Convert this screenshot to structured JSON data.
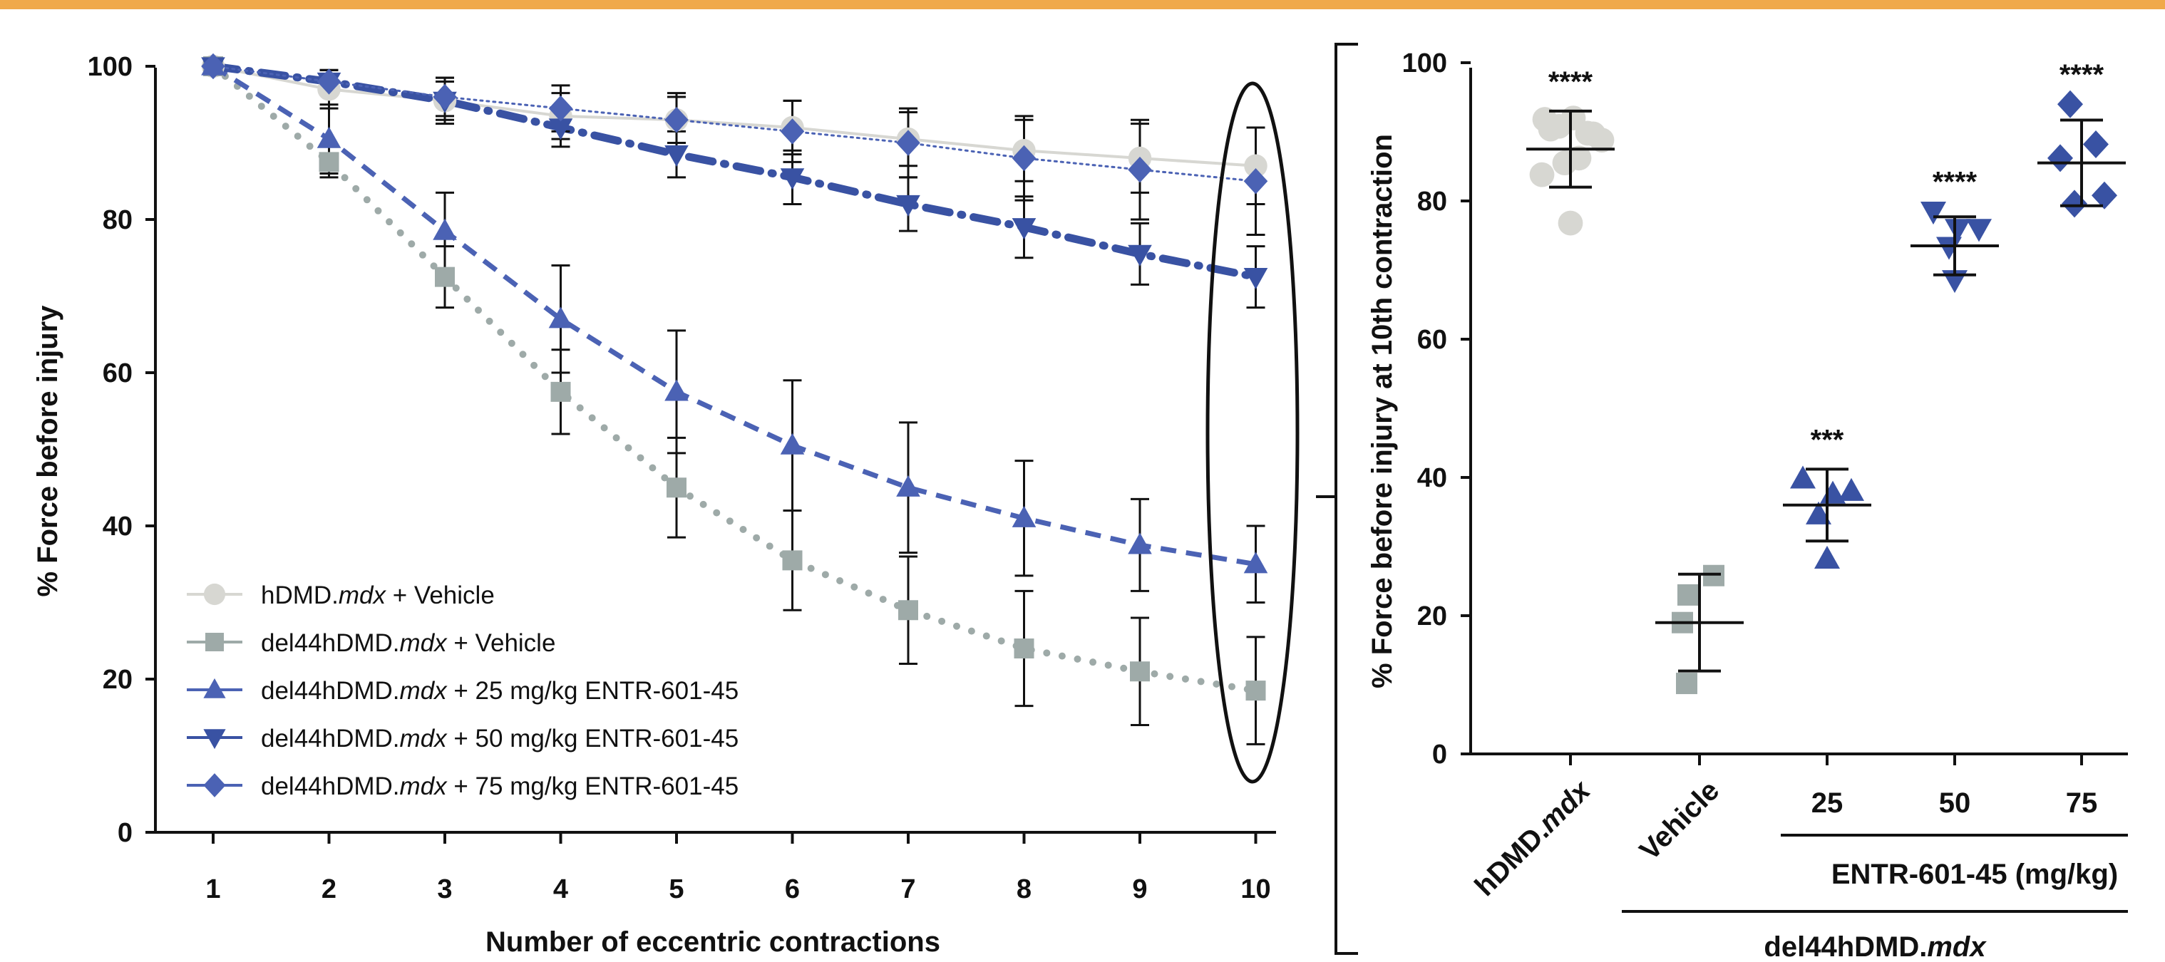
{
  "colors": {
    "top_band": "#F0A94A",
    "axis": "#111111",
    "hdmd_vehicle": "#D7D7D2",
    "del44_vehicle": "#9EAAA8",
    "dose_series": "#3952A3",
    "dose_25_75": "#4B62B4"
  },
  "chart_data": [
    {
      "type": "line",
      "xlabel": "Number of eccentric contractions",
      "ylabel": "% Force before injury",
      "ylim": [
        0,
        100
      ],
      "yticks": [
        "0",
        "20",
        "40",
        "60",
        "80",
        "100"
      ],
      "x": [
        "1",
        "2",
        "3",
        "4",
        "5",
        "6",
        "7",
        "8",
        "9",
        "10"
      ],
      "legend_position": "bottom-left",
      "annotation": "ellipse around contraction 10",
      "series": [
        {
          "key": "hdmd_vehicle",
          "legend": {
            "prefix": "hDMD.",
            "italic": "mdx",
            "suffix": " + Vehicle"
          },
          "marker": "circle",
          "line": "solid",
          "color": "#D7D7D2",
          "values": [
            100,
            97,
            95.5,
            93.5,
            93,
            92,
            90.5,
            89,
            88,
            87
          ],
          "errors": [
            0,
            2.5,
            3,
            3,
            3,
            3.5,
            3.5,
            4,
            4.5,
            5
          ]
        },
        {
          "key": "del44_vehicle",
          "legend": {
            "prefix": "del44hDMD.",
            "italic": "mdx",
            "suffix": " + Vehicle"
          },
          "marker": "square",
          "line": "dotted",
          "color": "#9EAAA8",
          "values": [
            100,
            87.5,
            72.5,
            57.5,
            45,
            35.5,
            29,
            24,
            21,
            18.5
          ],
          "errors": [
            0,
            2,
            4,
            5.5,
            6.5,
            6.5,
            7,
            7.5,
            7,
            7
          ]
        },
        {
          "key": "del44_25",
          "legend": {
            "prefix": "del44hDMD.",
            "italic": "mdx",
            "suffix": " + 25 mg/kg ENTR-601-45"
          },
          "marker": "triangle-up",
          "line": "dashed",
          "color": "#4B62B4",
          "values": [
            100,
            90.5,
            78.5,
            67,
            57.5,
            50.5,
            45,
            41,
            37.5,
            35
          ],
          "errors": [
            0,
            4.5,
            5,
            7,
            8,
            8.5,
            8.5,
            7.5,
            6,
            5
          ]
        },
        {
          "key": "del44_50",
          "legend": {
            "prefix": "del44hDMD.",
            "italic": "mdx",
            "suffix": " + 50 mg/kg ENTR-601-45"
          },
          "marker": "triangle-down",
          "line": "dash-dot",
          "color": "#3952A3",
          "values": [
            100,
            98,
            95.5,
            92,
            88.5,
            85.5,
            82,
            79,
            75.5,
            72.5
          ],
          "errors": [
            0,
            1.5,
            2.5,
            2.5,
            3,
            3.5,
            3.5,
            4,
            4,
            4
          ]
        },
        {
          "key": "del44_75",
          "legend": {
            "prefix": "del44hDMD.",
            "italic": "mdx",
            "suffix": " + 75 mg/kg ENTR-601-45"
          },
          "marker": "diamond",
          "line": "dotted-thin",
          "color": "#4B62B4",
          "values": [
            100,
            98,
            96,
            94.5,
            93,
            91.5,
            90,
            88,
            86.5,
            85
          ],
          "errors": [
            0,
            1.5,
            2.5,
            3,
            3.5,
            4,
            4.5,
            5.5,
            6.5,
            7
          ]
        }
      ]
    },
    {
      "type": "scatter",
      "ylabel": "% Force before injury at 10th contraction",
      "ylim": [
        0,
        100
      ],
      "yticks": [
        "0",
        "20",
        "40",
        "60",
        "80",
        "100"
      ],
      "categories": [
        {
          "label_prefix": "hDMD.",
          "label_italic": "mdx",
          "label_suffix": ""
        },
        {
          "label_prefix": "Vehicle",
          "label_italic": "",
          "label_suffix": ""
        },
        {
          "label_prefix": "25",
          "label_italic": "",
          "label_suffix": ""
        },
        {
          "label_prefix": "50",
          "label_italic": "",
          "label_suffix": ""
        },
        {
          "label_prefix": "75",
          "label_italic": "",
          "label_suffix": ""
        }
      ],
      "group_label_treatment": "ENTR-601-45 (mg/kg)",
      "group_label_strain": {
        "prefix": "del44hDMD.",
        "italic": "mdx"
      },
      "groups": [
        {
          "marker": "circle",
          "color": "#D7D7D2",
          "mean": 87.5,
          "sd": 5.5,
          "significance": "****",
          "points": [
            91.8,
            90.8,
            92.0,
            89.8,
            88.8,
            90.4,
            85.5,
            86.2,
            83.8,
            89.7,
            76.8
          ]
        },
        {
          "marker": "square",
          "color": "#9EAAA8",
          "mean": 19,
          "sd": 7,
          "significance": "",
          "points": [
            25.8,
            23.0,
            19.0,
            10.2
          ]
        },
        {
          "marker": "triangle-up",
          "color": "#3952A3",
          "mean": 36,
          "sd": 5.2,
          "significance": "***",
          "points": [
            39.8,
            38.0,
            37.6,
            34.6,
            28.2
          ]
        },
        {
          "marker": "triangle-down",
          "color": "#3952A3",
          "mean": 73.5,
          "sd": 4.2,
          "significance": "****",
          "points": [
            78.5,
            76.0,
            76.0,
            73.4,
            68.6
          ]
        },
        {
          "marker": "diamond",
          "color": "#3952A3",
          "mean": 85.5,
          "sd": 6.2,
          "significance": "****",
          "points": [
            94.0,
            88.2,
            86.2,
            80.8,
            79.6
          ]
        }
      ]
    }
  ]
}
